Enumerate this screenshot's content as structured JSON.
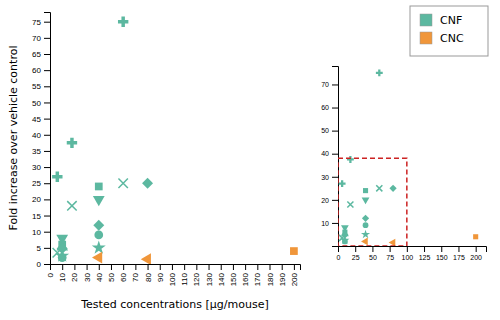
{
  "chart_data": [
    {
      "type": "scatter",
      "xlabel": "Tested concentrations [μg/mouse]",
      "ylabel": "Fold increase over vehicle control",
      "xlim": [
        0,
        205
      ],
      "ylim": [
        0,
        78
      ],
      "xticks": [
        0,
        10,
        20,
        30,
        40,
        50,
        60,
        70,
        80,
        90,
        100,
        110,
        120,
        130,
        140,
        150,
        160,
        170,
        180,
        190,
        200
      ],
      "yticks": [
        0,
        5,
        10,
        15,
        20,
        25,
        30,
        35,
        40,
        45,
        50,
        55,
        60,
        65,
        70,
        75
      ],
      "legend": "upper right",
      "series": [
        {
          "name": "CNF",
          "color": "#5cb8a0",
          "marker": [
            "plus",
            "x",
            "triangle-down",
            "square",
            "triangle-up",
            "diamond",
            "star",
            "circle",
            "plus",
            "x",
            "square",
            "triangle-down",
            "diamond",
            "circle",
            "star",
            "plus",
            "x",
            "diamond"
          ],
          "x": [
            6,
            6,
            10,
            10,
            10,
            10,
            10,
            10,
            18,
            18,
            40,
            40,
            40,
            40,
            40,
            60,
            60,
            80
          ],
          "values": [
            27,
            3.5,
            8,
            6,
            5.2,
            4.8,
            2.5,
            2.0,
            37.5,
            18,
            24,
            20,
            12,
            9,
            5,
            75,
            25,
            25
          ]
        },
        {
          "name": "CNC",
          "color": "#f0963a",
          "marker": [
            "triangle-left",
            "triangle-left",
            "square"
          ],
          "x": [
            40,
            80,
            200
          ],
          "values": [
            2,
            1.5,
            4
          ]
        }
      ]
    },
    {
      "type": "scatter",
      "xlim": [
        0,
        215
      ],
      "ylim": [
        0,
        78
      ],
      "xticks": [
        0,
        25,
        50,
        75,
        100,
        125,
        150,
        175,
        200
      ],
      "yticks": [
        10,
        20,
        30,
        40,
        50,
        60,
        70
      ],
      "highlight": {
        "x0": 0,
        "y0": 0,
        "x1": 100,
        "y1": 38,
        "color": "#cc2222",
        "line_style": "dashed"
      },
      "series": [
        {
          "color": "#5cb8a0",
          "marker": [
            "plus",
            "x",
            "triangle-down",
            "square",
            "triangle-up",
            "diamond",
            "star",
            "circle",
            "plus",
            "x",
            "square",
            "triangle-down",
            "diamond",
            "circle",
            "star",
            "plus",
            "x",
            "diamond"
          ],
          "x": [
            6,
            6,
            10,
            10,
            10,
            10,
            10,
            10,
            18,
            18,
            40,
            40,
            40,
            40,
            40,
            60,
            60,
            80
          ],
          "values": [
            27,
            3.5,
            8,
            6,
            5.2,
            4.8,
            2.5,
            2.0,
            37.5,
            18,
            24,
            20,
            12,
            9,
            5,
            75,
            25,
            25
          ]
        },
        {
          "color": "#f0963a",
          "marker": [
            "triangle-left",
            "triangle-left",
            "square"
          ],
          "x": [
            40,
            80,
            200
          ],
          "values": [
            2,
            1.5,
            4
          ]
        }
      ]
    }
  ]
}
